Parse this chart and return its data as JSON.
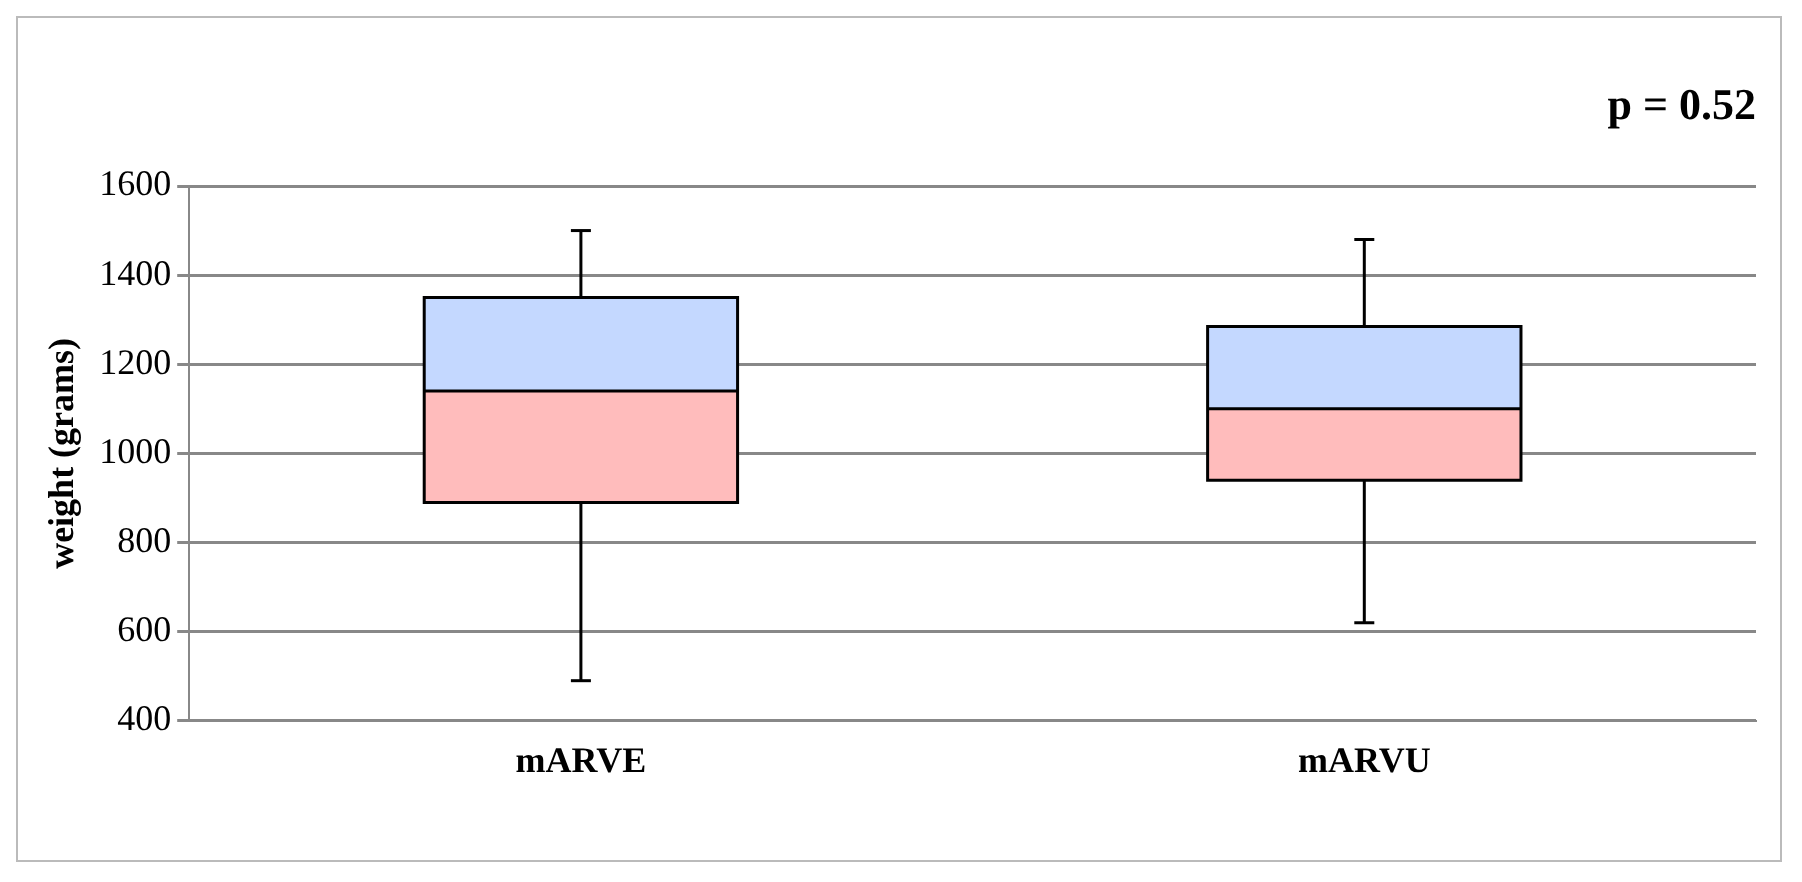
{
  "chart_data": {
    "type": "box",
    "ylabel": "weight (grams)",
    "annotations": [
      "p = 0.52"
    ],
    "categories": [
      "mARVE",
      "mARVU"
    ],
    "boxes": [
      {
        "low": 490,
        "q1": 890,
        "median": 1140,
        "q3": 1350,
        "high": 1500
      },
      {
        "low": 620,
        "q1": 940,
        "median": 1100,
        "q3": 1285,
        "high": 1480
      }
    ],
    "ylim": [
      400,
      1600
    ],
    "yticks": [
      400,
      600,
      800,
      1000,
      1200,
      1400,
      1600
    ],
    "grid": "y",
    "legend": false
  }
}
